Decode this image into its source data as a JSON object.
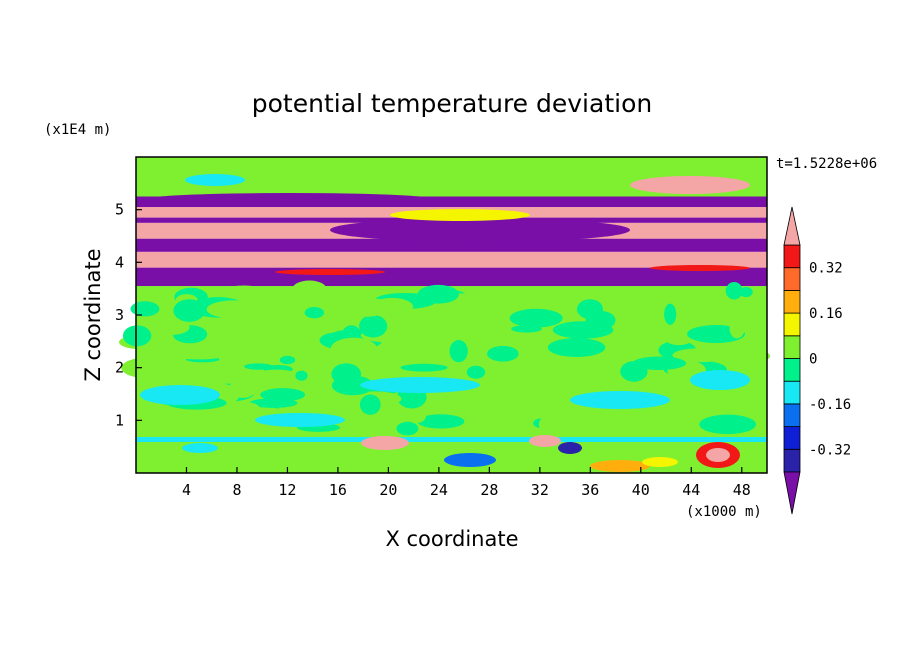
{
  "chart_data": {
    "type": "heatmap",
    "title": "potential temperature deviation",
    "xlabel": "X coordinate",
    "ylabel": "Z coordinate",
    "x_unit_label": "(x1000 m)",
    "y_unit_label": "(x1E4 m)",
    "time_label": "t=1.5228e+06",
    "x_range": [
      0,
      50
    ],
    "y_range": [
      0,
      6
    ],
    "x_ticks": [
      "4",
      "8",
      "12",
      "16",
      "20",
      "24",
      "28",
      "32",
      "36",
      "40",
      "44",
      "48"
    ],
    "y_ticks": [
      "1",
      "2",
      "3",
      "4",
      "5"
    ],
    "colorbar": {
      "labels": [
        "0.32",
        "0.16",
        "0",
        "-0.16",
        "-0.32"
      ],
      "levels": [
        -0.4,
        -0.32,
        -0.24,
        -0.16,
        -0.08,
        0,
        0.08,
        0.16,
        0.24,
        0.32,
        0.4
      ],
      "colors": [
        "#7a0fa8",
        "#2a22a8",
        "#0f1fd6",
        "#0a70f0",
        "#18e8f4",
        "#00f08c",
        "#7ef030",
        "#f5f500",
        "#ffae0e",
        "#ff6a2a",
        "#f21818",
        "#f4a6a6"
      ]
    },
    "bands": [
      {
        "z0": 0.0,
        "z1": 0.6,
        "value": 0.0
      },
      {
        "z0": 0.6,
        "z1": 3.55,
        "value": 0.02
      },
      {
        "z0": 3.55,
        "z1": 3.9,
        "value": -0.42
      },
      {
        "z0": 3.9,
        "z1": 4.2,
        "value": 0.42
      },
      {
        "z0": 4.2,
        "z1": 4.45,
        "value": -0.42
      },
      {
        "z0": 4.45,
        "z1": 4.75,
        "value": 0.42
      },
      {
        "z0": 4.75,
        "z1": 4.85,
        "value": -0.42
      },
      {
        "z0": 4.85,
        "z1": 5.05,
        "value": 0.42
      },
      {
        "z0": 5.05,
        "z1": 5.25,
        "value": -0.42
      },
      {
        "z0": 5.25,
        "z1": 6.0,
        "value": 0.02
      }
    ]
  }
}
